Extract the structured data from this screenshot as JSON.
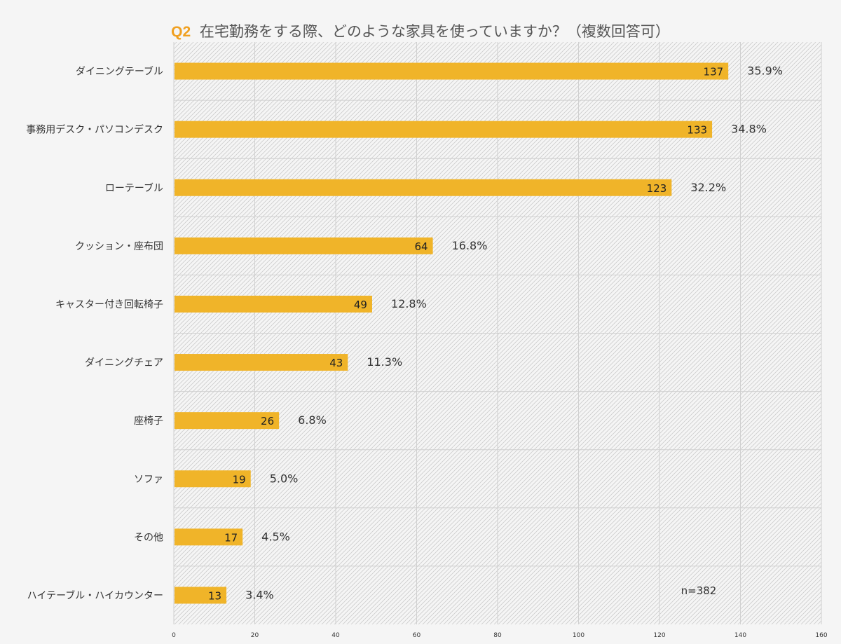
{
  "chart_data": {
    "type": "bar",
    "orientation": "horizontal",
    "title_prefix": "Q2",
    "title": "在宅勤務をする際、どのような家具を使っていますか？（複数回答可）",
    "categories": [
      "ダイニングテーブル",
      "事務用デスク・パソコンデスク",
      "ローテーブル",
      "クッション・座布団",
      "キャスター付き回転椅子",
      "ダイニングチェア",
      "座椅子",
      "ソファ",
      "その他",
      "ハイテーブル・ハイカウンター"
    ],
    "values": [
      137,
      133,
      123,
      64,
      49,
      43,
      26,
      19,
      17,
      13
    ],
    "value_labels": [
      "137",
      "133",
      "123",
      "64",
      "49",
      "43",
      "26",
      "19",
      "17",
      "13"
    ],
    "percent_labels": [
      "35.9%",
      "34.8%",
      "32.2%",
      "16.8%",
      "12.8%",
      "11.3%",
      "6.8%",
      "5.0%",
      "4.5%",
      "3.4%"
    ],
    "xlim": [
      0,
      160
    ],
    "x_ticks": [
      "0",
      "20",
      "40",
      "60",
      "80",
      "100",
      "120",
      "140",
      "160"
    ],
    "annotation": "n=382",
    "grid": true,
    "legend": "none",
    "xlabel": "",
    "ylabel": ""
  },
  "colors": {
    "bar": "#f0b429",
    "title_prefix": "#f0a020",
    "text": "#333333",
    "hatch": "#cccccc",
    "gridline": "#d0d0d0",
    "background": "#f5f5f5"
  }
}
